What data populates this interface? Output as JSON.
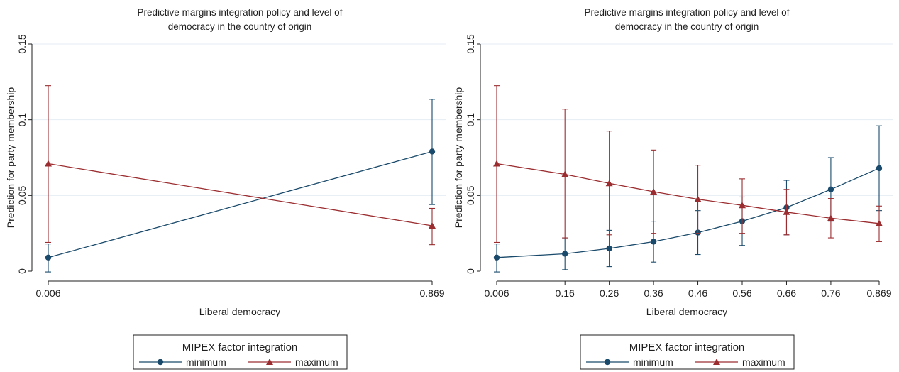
{
  "colors": {
    "minimum": "#1a4a6b",
    "maximum": "#9b2d30",
    "grid": "#e4eef4",
    "axis": "#1f1f1f"
  },
  "chart_data": [
    {
      "type": "line",
      "title_line1": "Predictive margins integration policy and level of",
      "title_line2": "democracy in the country of origin",
      "xlabel": "Liberal democracy",
      "ylabel": "Prediction for party membership",
      "xlim": [
        0.006,
        0.869
      ],
      "ylim": [
        0,
        0.15
      ],
      "x_ticks": [
        0.006,
        0.869
      ],
      "x_tick_labels": [
        "0.006",
        "0.869"
      ],
      "y_ticks": [
        0,
        0.05,
        0.1,
        0.15
      ],
      "y_tick_labels": [
        "0",
        "0.05",
        "0.1",
        "0.15"
      ],
      "grid": true,
      "legend": {
        "title": "MIPEX factor integration",
        "position": "bottom"
      },
      "x": [
        0.006,
        0.869
      ],
      "series": [
        {
          "name": "minimum",
          "marker": "circle",
          "values": [
            0.009,
            0.079
          ],
          "ci_low": [
            -0.0005,
            0.044
          ],
          "ci_high": [
            0.018,
            0.1135
          ]
        },
        {
          "name": "maximum",
          "marker": "triangle",
          "values": [
            0.071,
            0.03
          ],
          "ci_low": [
            0.019,
            0.0175
          ],
          "ci_high": [
            0.1225,
            0.0415
          ]
        }
      ]
    },
    {
      "type": "line",
      "title_line1": "Predictive margins integration policy and level of",
      "title_line2": "democracy in the country of origin",
      "xlabel": "Liberal democracy",
      "ylabel": "Prediction for party membership",
      "xlim": [
        0.006,
        0.869
      ],
      "ylim": [
        0,
        0.15
      ],
      "x_ticks": [
        0.006,
        0.16,
        0.26,
        0.36,
        0.46,
        0.56,
        0.66,
        0.76,
        0.869
      ],
      "x_tick_labels": [
        "0.006",
        "0.16",
        "0.26",
        "0.36",
        "0.46",
        "0.56",
        "0.66",
        "0.76",
        "0.869"
      ],
      "y_ticks": [
        0,
        0.05,
        0.1,
        0.15
      ],
      "y_tick_labels": [
        "0",
        "0.05",
        "0.1",
        "0.15"
      ],
      "grid": true,
      "legend": {
        "title": "MIPEX factor integration",
        "position": "bottom"
      },
      "x": [
        0.006,
        0.16,
        0.26,
        0.36,
        0.46,
        0.56,
        0.66,
        0.76,
        0.869
      ],
      "series": [
        {
          "name": "minimum",
          "marker": "circle",
          "values": [
            0.009,
            0.0115,
            0.015,
            0.0195,
            0.0255,
            0.033,
            0.042,
            0.054,
            0.068
          ],
          "ci_low": [
            -0.0005,
            0.001,
            0.003,
            0.006,
            0.011,
            0.017,
            0.024,
            0.033,
            0.04
          ],
          "ci_high": [
            0.018,
            0.022,
            0.027,
            0.033,
            0.04,
            0.049,
            0.06,
            0.075,
            0.096
          ]
        },
        {
          "name": "maximum",
          "marker": "triangle",
          "values": [
            0.071,
            0.064,
            0.058,
            0.0525,
            0.0475,
            0.0435,
            0.039,
            0.035,
            0.0315
          ],
          "ci_low": [
            0.019,
            0.022,
            0.024,
            0.025,
            0.025,
            0.025,
            0.024,
            0.022,
            0.0195
          ],
          "ci_high": [
            0.1225,
            0.107,
            0.0925,
            0.08,
            0.07,
            0.061,
            0.054,
            0.048,
            0.043
          ]
        }
      ]
    }
  ]
}
